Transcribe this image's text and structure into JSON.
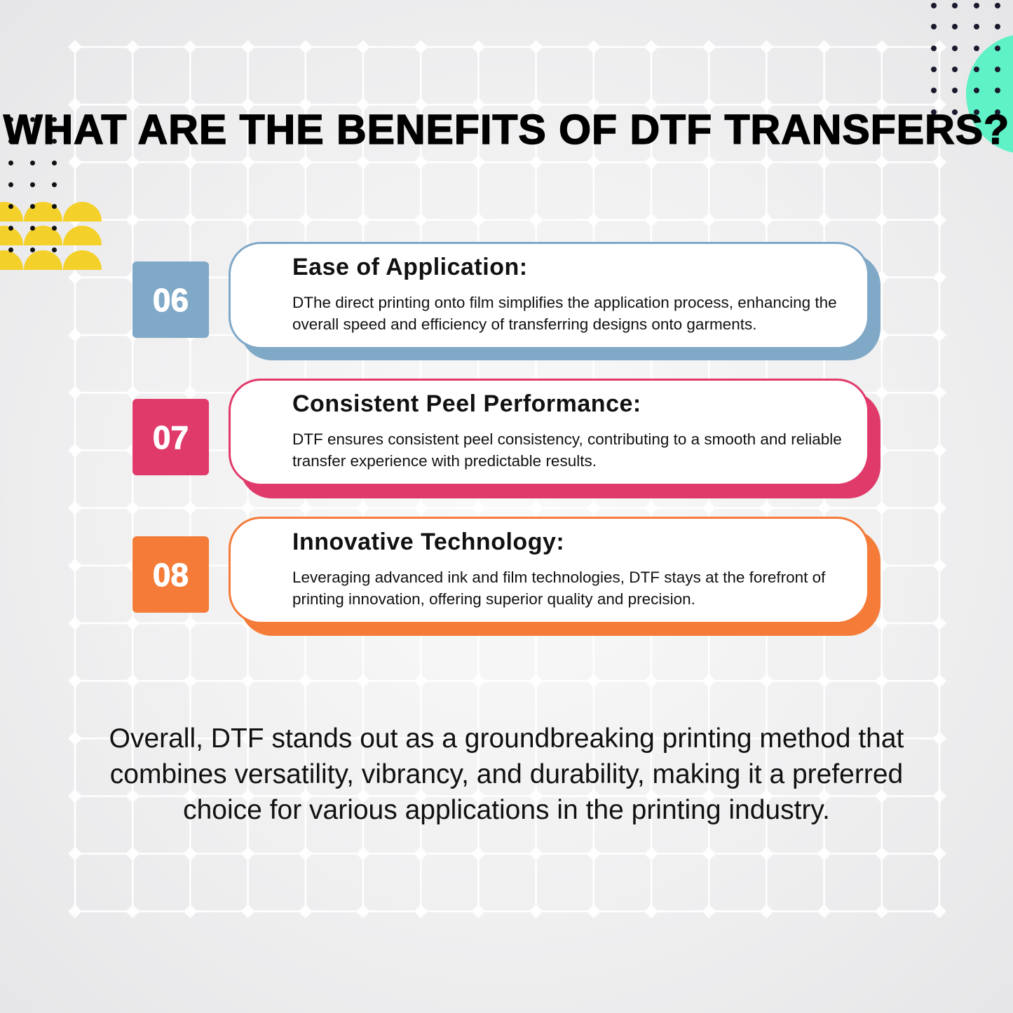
{
  "title": "WHAT ARE THE BENEFITS OF DTF TRANSFERS?",
  "colors": {
    "blue": "#80a8c7",
    "pink": "#e03a6a",
    "orange": "#f47b38",
    "yellow": "#f4d02a",
    "teal": "#5ef2c6"
  },
  "benefits": [
    {
      "number": "06",
      "title": "Ease of Application:",
      "description": "DThe direct printing onto film simplifies the application process, enhancing the overall speed and efficiency of transferring designs onto garments."
    },
    {
      "number": "07",
      "title": "Consistent Peel Performance:",
      "description": "DTF ensures consistent peel consistency, contributing to a smooth and reliable transfer experience with predictable results."
    },
    {
      "number": "08",
      "title": "Innovative Technology:",
      "description": "Leveraging advanced ink and film technologies, DTF stays at the forefront of printing innovation, offering superior quality and precision."
    }
  ],
  "conclusion": "Overall, DTF stands out as a groundbreaking printing method that combines versatility, vibrancy, and durability, making it a preferred choice for various applications in the printing industry."
}
